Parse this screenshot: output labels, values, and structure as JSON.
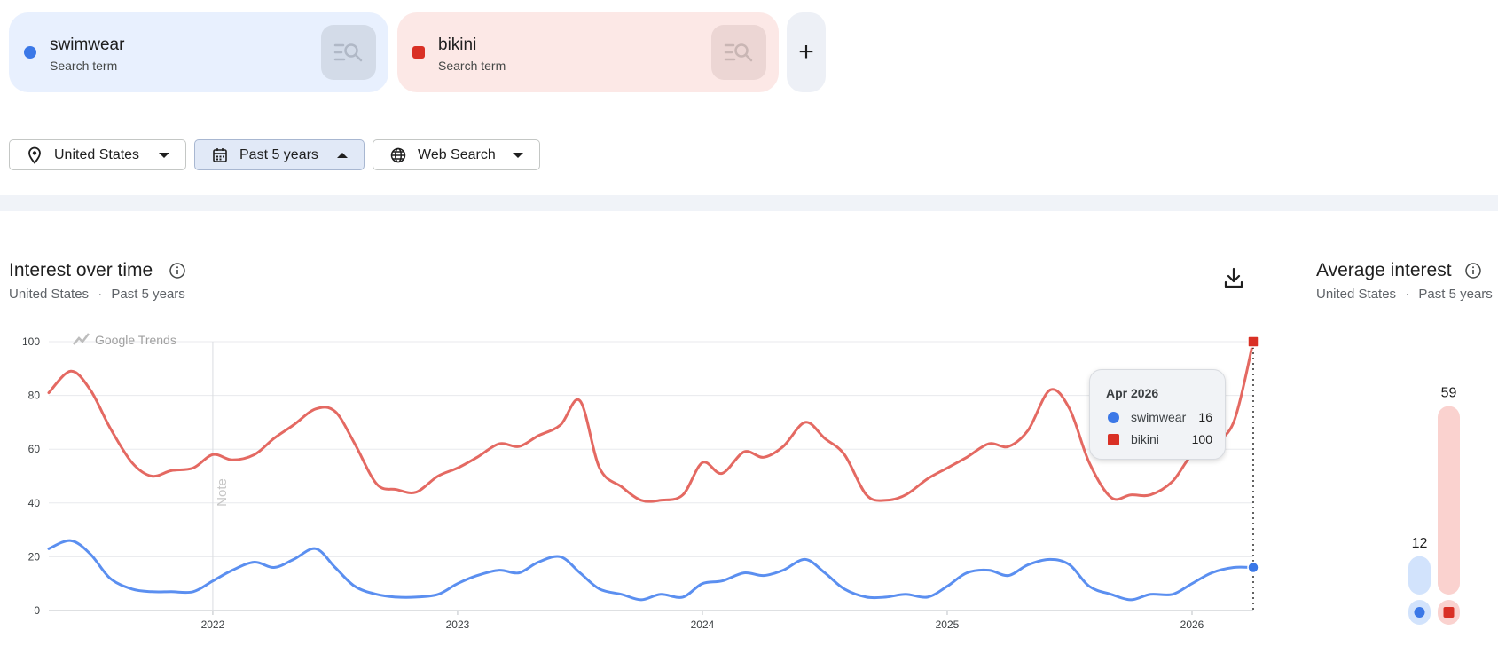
{
  "terms": [
    {
      "name": "swimwear",
      "sub": "Search term",
      "color": "#3b78e7"
    },
    {
      "name": "bikini",
      "sub": "Search term",
      "color": "#d93025"
    }
  ],
  "add_label": "+",
  "filters": {
    "location": "United States",
    "time": "Past 5 years",
    "property": "Web Search"
  },
  "interest": {
    "title": "Interest over time",
    "sub_location": "United States",
    "sub_sep": "·",
    "sub_time": "Past 5 years",
    "watermark": "Google Trends",
    "note": "Note"
  },
  "average": {
    "title": "Average interest",
    "sub_location": "United States",
    "sub_sep": "·",
    "sub_time": "Past 5 years",
    "values": [
      12,
      59
    ]
  },
  "tooltip": {
    "date": "Apr 2026",
    "rows": [
      {
        "name": "swimwear",
        "value": "16"
      },
      {
        "name": "bikini",
        "value": "100"
      }
    ]
  },
  "icons": [
    "search-list-icon",
    "location-pin-icon",
    "calendar-icon",
    "globe-icon",
    "info-icon",
    "download-icon",
    "trend-line-icon"
  ],
  "chart_data": {
    "type": "line",
    "ylim": [
      0,
      100
    ],
    "yticks": [
      0,
      20,
      40,
      60,
      80,
      100
    ],
    "grid": true,
    "x_tick_labels": [
      "2022",
      "2023",
      "2024",
      "2025",
      "2026"
    ],
    "x_ticks": [
      2022,
      2023,
      2024,
      2025,
      2026
    ],
    "xlim": [
      2021.33,
      2026.25
    ],
    "series": [
      {
        "name": "bikini",
        "color": "#e46962",
        "points": [
          [
            2021.33,
            81
          ],
          [
            2021.42,
            89
          ],
          [
            2021.5,
            82
          ],
          [
            2021.58,
            68
          ],
          [
            2021.67,
            55
          ],
          [
            2021.75,
            50
          ],
          [
            2021.83,
            52
          ],
          [
            2021.92,
            53
          ],
          [
            2022.0,
            58
          ],
          [
            2022.08,
            56
          ],
          [
            2022.17,
            58
          ],
          [
            2022.25,
            64
          ],
          [
            2022.33,
            69
          ],
          [
            2022.42,
            75
          ],
          [
            2022.5,
            74
          ],
          [
            2022.58,
            62
          ],
          [
            2022.67,
            47
          ],
          [
            2022.75,
            45
          ],
          [
            2022.83,
            44
          ],
          [
            2022.92,
            50
          ],
          [
            2023.0,
            53
          ],
          [
            2023.08,
            57
          ],
          [
            2023.17,
            62
          ],
          [
            2023.25,
            61
          ],
          [
            2023.33,
            65
          ],
          [
            2023.42,
            69
          ],
          [
            2023.5,
            78
          ],
          [
            2023.58,
            53
          ],
          [
            2023.67,
            46
          ],
          [
            2023.75,
            41
          ],
          [
            2023.83,
            41
          ],
          [
            2023.92,
            43
          ],
          [
            2024.0,
            55
          ],
          [
            2024.08,
            51
          ],
          [
            2024.17,
            59
          ],
          [
            2024.25,
            57
          ],
          [
            2024.33,
            61
          ],
          [
            2024.42,
            70
          ],
          [
            2024.5,
            64
          ],
          [
            2024.58,
            58
          ],
          [
            2024.67,
            43
          ],
          [
            2024.75,
            41
          ],
          [
            2024.83,
            43
          ],
          [
            2024.92,
            49
          ],
          [
            2025.0,
            53
          ],
          [
            2025.08,
            57
          ],
          [
            2025.17,
            62
          ],
          [
            2025.25,
            61
          ],
          [
            2025.33,
            67
          ],
          [
            2025.42,
            82
          ],
          [
            2025.5,
            75
          ],
          [
            2025.58,
            55
          ],
          [
            2025.67,
            42
          ],
          [
            2025.75,
            43
          ],
          [
            2025.83,
            43
          ],
          [
            2025.92,
            48
          ],
          [
            2026.0,
            58
          ],
          [
            2026.08,
            62
          ],
          [
            2026.17,
            70
          ],
          [
            2026.25,
            100
          ]
        ]
      },
      {
        "name": "swimwear",
        "color": "#5b8ff0",
        "points": [
          [
            2021.33,
            23
          ],
          [
            2021.42,
            26
          ],
          [
            2021.5,
            21
          ],
          [
            2021.58,
            12
          ],
          [
            2021.67,
            8
          ],
          [
            2021.75,
            7
          ],
          [
            2021.83,
            7
          ],
          [
            2021.92,
            7
          ],
          [
            2022.0,
            11
          ],
          [
            2022.08,
            15
          ],
          [
            2022.17,
            18
          ],
          [
            2022.25,
            16
          ],
          [
            2022.33,
            19
          ],
          [
            2022.42,
            23
          ],
          [
            2022.5,
            16
          ],
          [
            2022.58,
            9
          ],
          [
            2022.67,
            6
          ],
          [
            2022.75,
            5
          ],
          [
            2022.83,
            5
          ],
          [
            2022.92,
            6
          ],
          [
            2023.0,
            10
          ],
          [
            2023.08,
            13
          ],
          [
            2023.17,
            15
          ],
          [
            2023.25,
            14
          ],
          [
            2023.33,
            18
          ],
          [
            2023.42,
            20
          ],
          [
            2023.5,
            14
          ],
          [
            2023.58,
            8
          ],
          [
            2023.67,
            6
          ],
          [
            2023.75,
            4
          ],
          [
            2023.83,
            6
          ],
          [
            2023.92,
            5
          ],
          [
            2024.0,
            10
          ],
          [
            2024.08,
            11
          ],
          [
            2024.17,
            14
          ],
          [
            2024.25,
            13
          ],
          [
            2024.33,
            15
          ],
          [
            2024.42,
            19
          ],
          [
            2024.5,
            14
          ],
          [
            2024.58,
            8
          ],
          [
            2024.67,
            5
          ],
          [
            2024.75,
            5
          ],
          [
            2024.83,
            6
          ],
          [
            2024.92,
            5
          ],
          [
            2025.0,
            9
          ],
          [
            2025.08,
            14
          ],
          [
            2025.17,
            15
          ],
          [
            2025.25,
            13
          ],
          [
            2025.33,
            17
          ],
          [
            2025.42,
            19
          ],
          [
            2025.5,
            17
          ],
          [
            2025.58,
            9
          ],
          [
            2025.67,
            6
          ],
          [
            2025.75,
            4
          ],
          [
            2025.83,
            6
          ],
          [
            2025.92,
            6
          ],
          [
            2026.0,
            10
          ],
          [
            2026.08,
            14
          ],
          [
            2026.17,
            16
          ],
          [
            2026.25,
            16
          ]
        ]
      }
    ]
  }
}
